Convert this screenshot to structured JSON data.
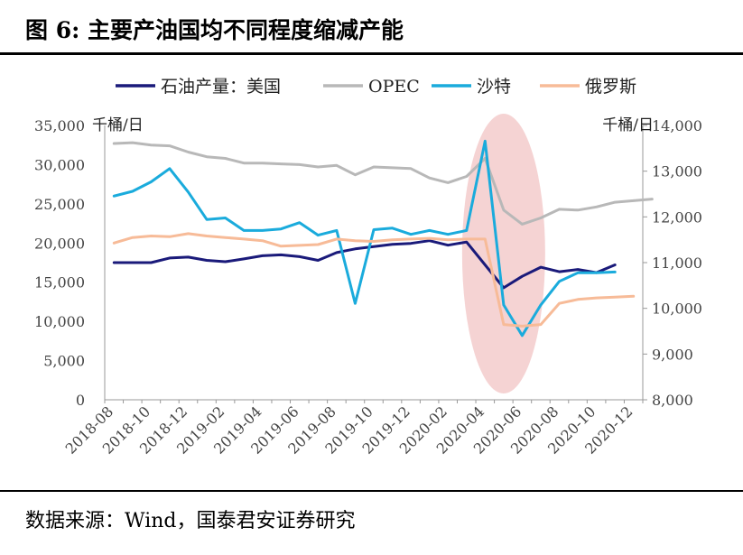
{
  "figure": {
    "title": "图 6:  主要产油国均不同程度缩减产能",
    "source": "数据来源：Wind，国泰君安证券研究"
  },
  "chart_data": {
    "type": "line",
    "left_unit": "千桶/日",
    "right_unit": "千桶/日",
    "left_axis": {
      "min": 0,
      "max": 35000,
      "ticks": [
        0,
        5000,
        10000,
        15000,
        20000,
        25000,
        30000,
        35000
      ],
      "tick_labels": [
        "0",
        "5,000",
        "10,000",
        "15,000",
        "20,000",
        "25,000",
        "30,000",
        "35,000"
      ]
    },
    "right_axis": {
      "min": 8000,
      "max": 14000,
      "ticks": [
        8000,
        9000,
        10000,
        11000,
        12000,
        13000,
        14000
      ],
      "tick_labels": [
        "8,000",
        "9,000",
        "10,000",
        "11,000",
        "12,000",
        "13,000",
        "14,000"
      ]
    },
    "x_labels": [
      "2018-08",
      "2018-10",
      "2018-12",
      "2019-02",
      "2019-04",
      "2019-06",
      "2019-08",
      "2019-10",
      "2019-12",
      "2020-02",
      "2020-04",
      "2020-06",
      "2020-08",
      "2020-10",
      "2020-12"
    ],
    "legend_position": "top",
    "highlight_period": "2020-04 to 2020-06",
    "series": [
      {
        "name": "石油产量：美国",
        "axis": "right",
        "color": "#1a1a7a",
        "start": "2018-08",
        "values": [
          11000,
          11000,
          11000,
          11100,
          11120,
          11050,
          11020,
          11080,
          11150,
          11170,
          11130,
          11050,
          11220,
          11300,
          11350,
          11400,
          11420,
          11480,
          11380,
          11450,
          10950,
          10450,
          10700,
          10900,
          10800,
          10850,
          10780,
          10950
        ]
      },
      {
        "name": "OPEC",
        "axis": "left",
        "color": "#b8b8b8",
        "start": "2018-08",
        "values": [
          32700,
          32800,
          32500,
          32400,
          31600,
          31000,
          30800,
          30200,
          30200,
          30100,
          30000,
          29700,
          29900,
          28700,
          29700,
          29600,
          29500,
          28300,
          27700,
          28500,
          30800,
          24200,
          22400,
          23200,
          24300,
          24200,
          24600,
          25200,
          25400,
          25600
        ]
      },
      {
        "name": "沙特",
        "axis": "left",
        "color": "#1aabdc",
        "start": "2018-08",
        "values": [
          26000,
          26600,
          27800,
          29500,
          26500,
          23000,
          23200,
          21600,
          21600,
          21800,
          22600,
          21000,
          21600,
          12300,
          21700,
          21900,
          21100,
          21600,
          21100,
          21600,
          33000,
          12100,
          8200,
          12100,
          15100,
          16200,
          16200,
          16300
        ]
      },
      {
        "name": "俄罗斯",
        "axis": "left",
        "color": "#f7bb98",
        "start": "2018-08",
        "values": [
          20000,
          20700,
          20900,
          20800,
          21200,
          20900,
          20700,
          20500,
          20300,
          19600,
          19700,
          19800,
          20500,
          20300,
          20200,
          20400,
          20500,
          20600,
          20400,
          20500,
          20500,
          9600,
          9400,
          9600,
          12300,
          12800,
          13000,
          13100,
          13200
        ]
      }
    ]
  }
}
